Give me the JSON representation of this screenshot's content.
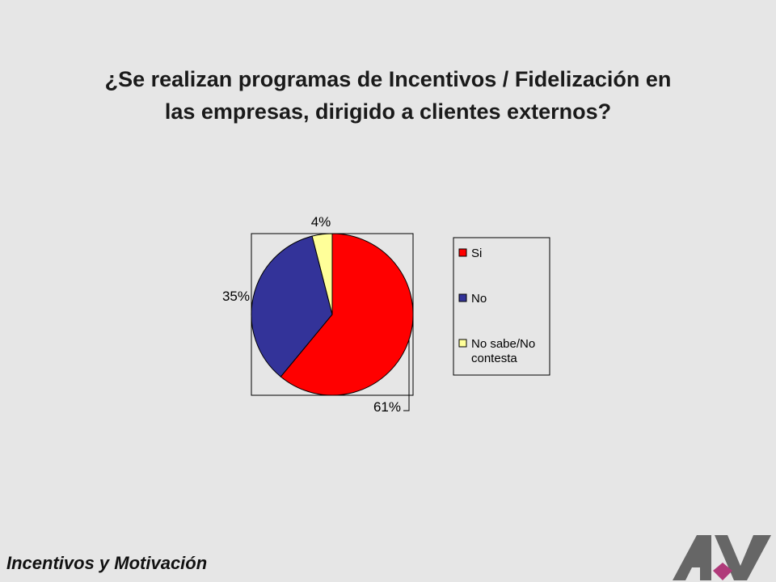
{
  "title": {
    "line1": "¿Se realizan programas de Incentivos / Fidelización en",
    "line2": "las empresas, dirigido a clientes externos?"
  },
  "footer": "Incentivos y  Motivación",
  "chart_data": {
    "type": "pie",
    "title": "¿Se realizan programas de Incentivos / Fidelización en las empresas, dirigido a clientes externos?",
    "categories": [
      "Si",
      "No",
      "No sabe/No contesta"
    ],
    "values": [
      61,
      35,
      4
    ],
    "labels": [
      "61%",
      "35%",
      "4%"
    ],
    "colors": [
      "#ff0000",
      "#333399",
      "#ffff99"
    ],
    "legend": {
      "placement": "right",
      "entries": [
        {
          "lines": [
            "Si"
          ]
        },
        {
          "lines": [
            "No"
          ]
        },
        {
          "lines": [
            "No sabe/No",
            "contesta"
          ]
        }
      ]
    }
  },
  "logo": {
    "colors": [
      "#666666",
      "#b03a7a"
    ]
  }
}
